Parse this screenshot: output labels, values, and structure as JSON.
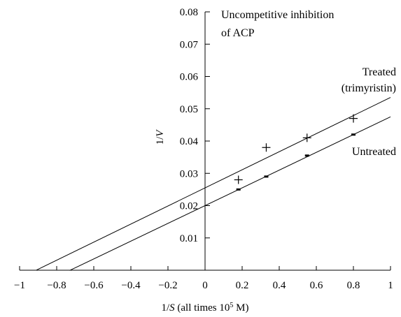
{
  "chart_data": {
    "type": "scatter",
    "title": "",
    "annotations": {
      "title_line1": "Uncompetitive inhibition",
      "title_line2": "of ACP",
      "treated_line1": "Treated",
      "treated_line2": "(trimyristin)",
      "untreated": "Untreated"
    },
    "xlabel_parts": {
      "v1": "1/",
      "v2": "S",
      "v3": " (all times 10",
      "sup": "5",
      "v4": " M)"
    },
    "ylabel_parts": {
      "v1": "1/",
      "v2": "V"
    },
    "xlim": [
      -1,
      1
    ],
    "ylim": [
      0,
      0.08
    ],
    "x_ticks": [
      -1,
      -0.8,
      -0.6,
      -0.4,
      -0.2,
      0,
      0.2,
      0.4,
      0.6,
      0.8,
      1
    ],
    "x_tick_labels": [
      "−1",
      "−0.8",
      "−0.6",
      "−0.4",
      "−0.2",
      "0",
      "0.2",
      "0.4",
      "0.6",
      "0.8",
      "1"
    ],
    "y_ticks": [
      0.01,
      0.02,
      0.03,
      0.04,
      0.05,
      0.06,
      0.07,
      0.08
    ],
    "y_tick_labels": [
      "0.01",
      "0.02",
      "0.03",
      "0.04",
      "0.05",
      "0.06",
      "0.07",
      "0.08"
    ],
    "grid": false,
    "legend": "none",
    "series": [
      {
        "marker": "plus",
        "points": [
          [
            0.18,
            0.028
          ],
          [
            0.33,
            0.038
          ],
          [
            0.55,
            0.041
          ],
          [
            0.8,
            0.047
          ]
        ],
        "fit_line": {
          "slope": 0.028,
          "intercept": 0.0255,
          "x_range": [
            -0.91,
            1.0
          ]
        }
      },
      {
        "marker": "dash",
        "points": [
          [
            0.18,
            0.025
          ],
          [
            0.33,
            0.029
          ],
          [
            0.55,
            0.0355
          ],
          [
            0.8,
            0.042
          ]
        ],
        "fit_line": {
          "slope": 0.0275,
          "intercept": 0.02,
          "x_range": [
            -0.73,
            1.0
          ]
        }
      }
    ]
  }
}
